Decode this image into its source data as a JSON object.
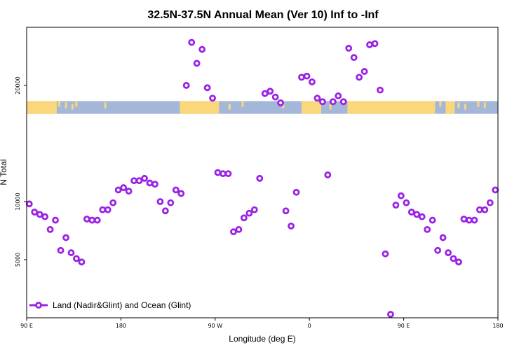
{
  "chart_data": {
    "type": "scatter",
    "title": "32.5N-37.5N Annual Mean (Ver 10)   Inf to -Inf",
    "xlabel": "Longitude (deg E)",
    "ylabel": "N Total",
    "xlim": [
      0,
      360
    ],
    "ylim": [
      0,
      25000
    ],
    "x_ticks": [
      {
        "value": 0,
        "label": "90 E"
      },
      {
        "value": 72,
        "label": "180"
      },
      {
        "value": 144,
        "label": "90 W"
      },
      {
        "value": 216,
        "label": "0"
      },
      {
        "value": 288,
        "label": "90 E"
      },
      {
        "value": 360,
        "label": "180"
      }
    ],
    "y_ticks": [
      {
        "value": 5000,
        "label": "5000"
      },
      {
        "value": 10000,
        "label": "10000"
      },
      {
        "value": 20000,
        "label": "20000"
      }
    ],
    "legend": {
      "label": "Land (Nadir&Glint) and Ocean (Glint)",
      "position": "bottom-left"
    },
    "colors": {
      "series": "#9a21e6",
      "ocean": "#a4b7d9",
      "land": "#fbd77c"
    },
    "map_strip": {
      "y_center": 18100,
      "thickness_data": 1100,
      "land_segments": [
        [
          0,
          23
        ],
        [
          117,
          147
        ],
        [
          210,
          225
        ],
        [
          245,
          312
        ],
        [
          320,
          327
        ]
      ],
      "land_specks": [
        25,
        30,
        35,
        38,
        60,
        155,
        165,
        196,
        232,
        316,
        330,
        335,
        345,
        350
      ]
    },
    "series": [
      {
        "name": "Land (Nadir&Glint) and Ocean (Glint)",
        "x": [
          2,
          6,
          10,
          14,
          18,
          22,
          26,
          30,
          34,
          38,
          42,
          46,
          50,
          54,
          58,
          62,
          66,
          70,
          74,
          78,
          82,
          86,
          90,
          94,
          98,
          102,
          106,
          110,
          114,
          118,
          122,
          126,
          130,
          134,
          138,
          142,
          146,
          150,
          154,
          158,
          162,
          166,
          170,
          174,
          178,
          182,
          186,
          190,
          194,
          198,
          202,
          206,
          210,
          214,
          218,
          222,
          226,
          230,
          234,
          238,
          242,
          246,
          250,
          254,
          258,
          262,
          266,
          270,
          274,
          278,
          282,
          286,
          290,
          294,
          298,
          302,
          306,
          310,
          314,
          318,
          322,
          326,
          330,
          334,
          338,
          342,
          346,
          350,
          354,
          358
        ],
        "y": [
          9800,
          9100,
          8900,
          8700,
          7600,
          8400,
          5800,
          6900,
          5600,
          5100,
          4800,
          8500,
          8400,
          8400,
          9300,
          9300,
          9900,
          11000,
          11200,
          10900,
          11800,
          11800,
          12000,
          11600,
          11500,
          10000,
          9200,
          9900,
          11000,
          10700,
          20000,
          23700,
          21900,
          23100,
          19800,
          18900,
          12500,
          12400,
          12400,
          7400,
          7600,
          8600,
          9000,
          9300,
          12000,
          19300,
          19500,
          19000,
          18500,
          9200,
          7900,
          10800,
          20700,
          20800,
          20300,
          18900,
          18600,
          12300,
          18600,
          19100,
          18600,
          23200,
          22400,
          20700,
          21200,
          23500,
          23600,
          19600,
          5500,
          300,
          9700,
          10500,
          9900,
          9100,
          8900,
          8700,
          7600,
          8400,
          5800,
          6900,
          5600,
          5100,
          4800,
          8500,
          8400,
          8400,
          9300,
          9300,
          9900,
          11000
        ]
      }
    ]
  }
}
